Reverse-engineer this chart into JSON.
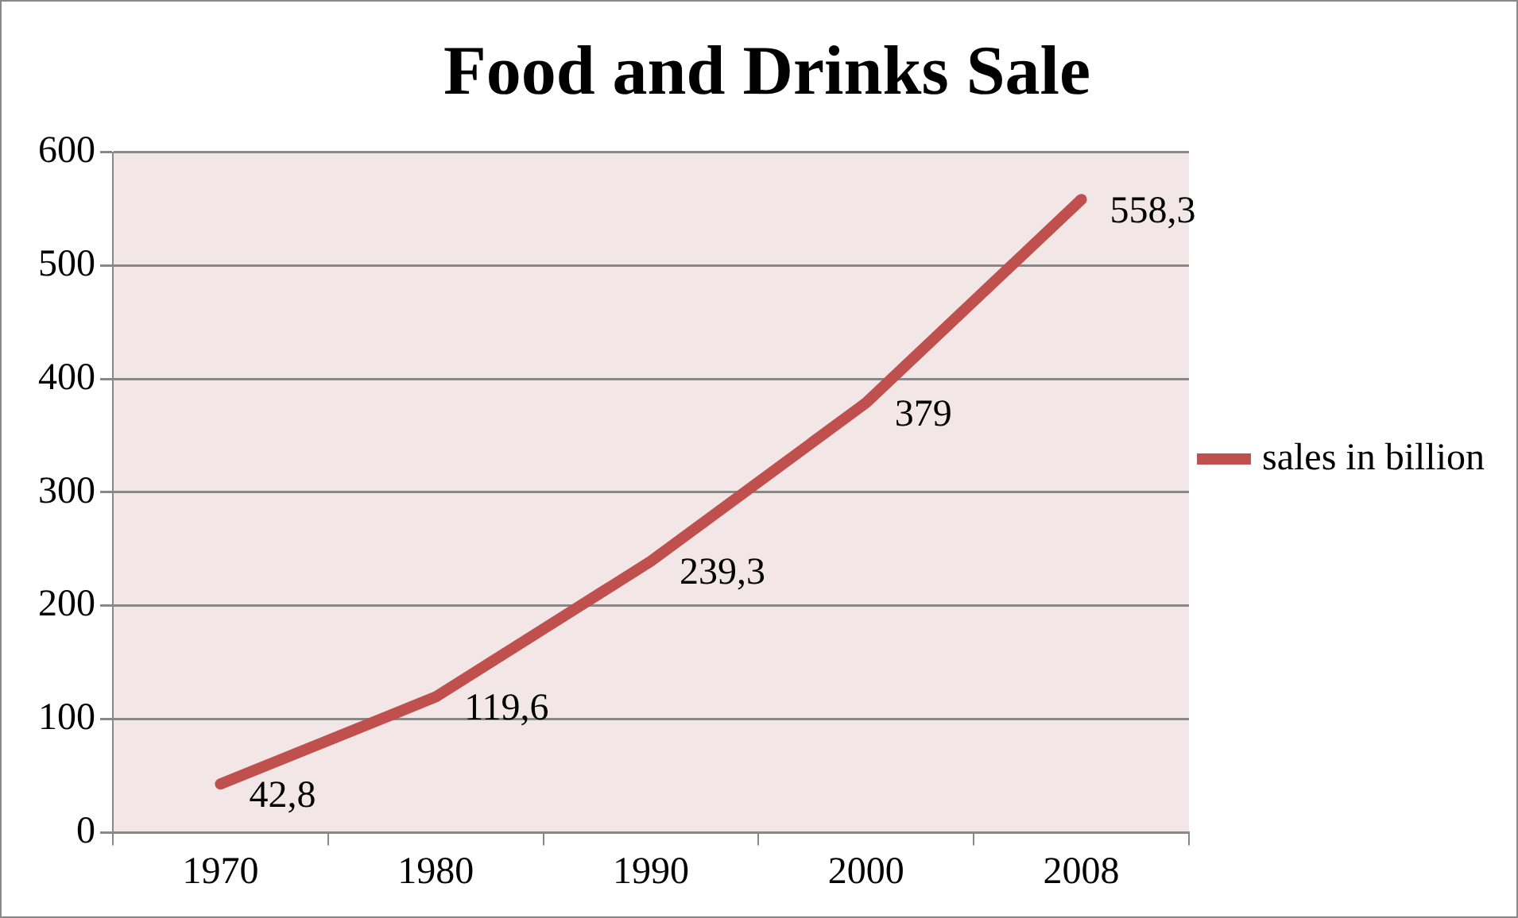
{
  "chart_data": {
    "type": "line",
    "title": "Food and Drinks Sale",
    "categories": [
      "1970",
      "1980",
      "1990",
      "2000",
      "2008"
    ],
    "series": [
      {
        "name": "sales in billion",
        "color": "#c0504d",
        "values": [
          42.8,
          119.6,
          239.3,
          379,
          558.3
        ],
        "value_labels": [
          "42,8",
          "119,6",
          "239,3",
          "379",
          "558,3"
        ]
      }
    ],
    "ylim": [
      0,
      600
    ],
    "yticks": [
      0,
      100,
      200,
      300,
      400,
      500,
      600
    ],
    "grid": "y",
    "legend": "right",
    "marker": "none",
    "line_style": "solid"
  }
}
